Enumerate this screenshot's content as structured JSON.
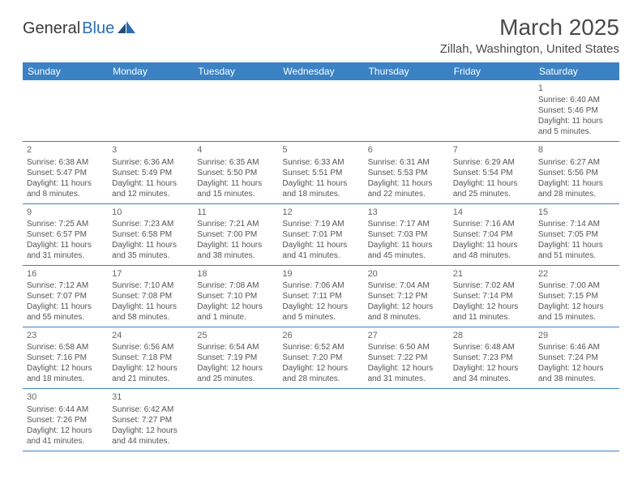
{
  "brand": {
    "part1": "General",
    "part2": "Blue"
  },
  "title": "March 2025",
  "location": "Zillah, Washington, United States",
  "day_headers": [
    "Sunday",
    "Monday",
    "Tuesday",
    "Wednesday",
    "Thursday",
    "Friday",
    "Saturday"
  ],
  "colors": {
    "header_bg": "#3a82c4",
    "header_text": "#ffffff",
    "border": "#3a82c4",
    "text": "#555555",
    "brand_blue": "#2a6fb5"
  },
  "weeks": [
    [
      null,
      null,
      null,
      null,
      null,
      null,
      {
        "d": "1",
        "sunrise": "Sunrise: 6:40 AM",
        "sunset": "Sunset: 5:46 PM",
        "day1": "Daylight: 11 hours",
        "day2": "and 5 minutes."
      }
    ],
    [
      {
        "d": "2",
        "sunrise": "Sunrise: 6:38 AM",
        "sunset": "Sunset: 5:47 PM",
        "day1": "Daylight: 11 hours",
        "day2": "and 8 minutes."
      },
      {
        "d": "3",
        "sunrise": "Sunrise: 6:36 AM",
        "sunset": "Sunset: 5:49 PM",
        "day1": "Daylight: 11 hours",
        "day2": "and 12 minutes."
      },
      {
        "d": "4",
        "sunrise": "Sunrise: 6:35 AM",
        "sunset": "Sunset: 5:50 PM",
        "day1": "Daylight: 11 hours",
        "day2": "and 15 minutes."
      },
      {
        "d": "5",
        "sunrise": "Sunrise: 6:33 AM",
        "sunset": "Sunset: 5:51 PM",
        "day1": "Daylight: 11 hours",
        "day2": "and 18 minutes."
      },
      {
        "d": "6",
        "sunrise": "Sunrise: 6:31 AM",
        "sunset": "Sunset: 5:53 PM",
        "day1": "Daylight: 11 hours",
        "day2": "and 22 minutes."
      },
      {
        "d": "7",
        "sunrise": "Sunrise: 6:29 AM",
        "sunset": "Sunset: 5:54 PM",
        "day1": "Daylight: 11 hours",
        "day2": "and 25 minutes."
      },
      {
        "d": "8",
        "sunrise": "Sunrise: 6:27 AM",
        "sunset": "Sunset: 5:56 PM",
        "day1": "Daylight: 11 hours",
        "day2": "and 28 minutes."
      }
    ],
    [
      {
        "d": "9",
        "sunrise": "Sunrise: 7:25 AM",
        "sunset": "Sunset: 6:57 PM",
        "day1": "Daylight: 11 hours",
        "day2": "and 31 minutes."
      },
      {
        "d": "10",
        "sunrise": "Sunrise: 7:23 AM",
        "sunset": "Sunset: 6:58 PM",
        "day1": "Daylight: 11 hours",
        "day2": "and 35 minutes."
      },
      {
        "d": "11",
        "sunrise": "Sunrise: 7:21 AM",
        "sunset": "Sunset: 7:00 PM",
        "day1": "Daylight: 11 hours",
        "day2": "and 38 minutes."
      },
      {
        "d": "12",
        "sunrise": "Sunrise: 7:19 AM",
        "sunset": "Sunset: 7:01 PM",
        "day1": "Daylight: 11 hours",
        "day2": "and 41 minutes."
      },
      {
        "d": "13",
        "sunrise": "Sunrise: 7:17 AM",
        "sunset": "Sunset: 7:03 PM",
        "day1": "Daylight: 11 hours",
        "day2": "and 45 minutes."
      },
      {
        "d": "14",
        "sunrise": "Sunrise: 7:16 AM",
        "sunset": "Sunset: 7:04 PM",
        "day1": "Daylight: 11 hours",
        "day2": "and 48 minutes."
      },
      {
        "d": "15",
        "sunrise": "Sunrise: 7:14 AM",
        "sunset": "Sunset: 7:05 PM",
        "day1": "Daylight: 11 hours",
        "day2": "and 51 minutes."
      }
    ],
    [
      {
        "d": "16",
        "sunrise": "Sunrise: 7:12 AM",
        "sunset": "Sunset: 7:07 PM",
        "day1": "Daylight: 11 hours",
        "day2": "and 55 minutes."
      },
      {
        "d": "17",
        "sunrise": "Sunrise: 7:10 AM",
        "sunset": "Sunset: 7:08 PM",
        "day1": "Daylight: 11 hours",
        "day2": "and 58 minutes."
      },
      {
        "d": "18",
        "sunrise": "Sunrise: 7:08 AM",
        "sunset": "Sunset: 7:10 PM",
        "day1": "Daylight: 12 hours",
        "day2": "and 1 minute."
      },
      {
        "d": "19",
        "sunrise": "Sunrise: 7:06 AM",
        "sunset": "Sunset: 7:11 PM",
        "day1": "Daylight: 12 hours",
        "day2": "and 5 minutes."
      },
      {
        "d": "20",
        "sunrise": "Sunrise: 7:04 AM",
        "sunset": "Sunset: 7:12 PM",
        "day1": "Daylight: 12 hours",
        "day2": "and 8 minutes."
      },
      {
        "d": "21",
        "sunrise": "Sunrise: 7:02 AM",
        "sunset": "Sunset: 7:14 PM",
        "day1": "Daylight: 12 hours",
        "day2": "and 11 minutes."
      },
      {
        "d": "22",
        "sunrise": "Sunrise: 7:00 AM",
        "sunset": "Sunset: 7:15 PM",
        "day1": "Daylight: 12 hours",
        "day2": "and 15 minutes."
      }
    ],
    [
      {
        "d": "23",
        "sunrise": "Sunrise: 6:58 AM",
        "sunset": "Sunset: 7:16 PM",
        "day1": "Daylight: 12 hours",
        "day2": "and 18 minutes."
      },
      {
        "d": "24",
        "sunrise": "Sunrise: 6:56 AM",
        "sunset": "Sunset: 7:18 PM",
        "day1": "Daylight: 12 hours",
        "day2": "and 21 minutes."
      },
      {
        "d": "25",
        "sunrise": "Sunrise: 6:54 AM",
        "sunset": "Sunset: 7:19 PM",
        "day1": "Daylight: 12 hours",
        "day2": "and 25 minutes."
      },
      {
        "d": "26",
        "sunrise": "Sunrise: 6:52 AM",
        "sunset": "Sunset: 7:20 PM",
        "day1": "Daylight: 12 hours",
        "day2": "and 28 minutes."
      },
      {
        "d": "27",
        "sunrise": "Sunrise: 6:50 AM",
        "sunset": "Sunset: 7:22 PM",
        "day1": "Daylight: 12 hours",
        "day2": "and 31 minutes."
      },
      {
        "d": "28",
        "sunrise": "Sunrise: 6:48 AM",
        "sunset": "Sunset: 7:23 PM",
        "day1": "Daylight: 12 hours",
        "day2": "and 34 minutes."
      },
      {
        "d": "29",
        "sunrise": "Sunrise: 6:46 AM",
        "sunset": "Sunset: 7:24 PM",
        "day1": "Daylight: 12 hours",
        "day2": "and 38 minutes."
      }
    ],
    [
      {
        "d": "30",
        "sunrise": "Sunrise: 6:44 AM",
        "sunset": "Sunset: 7:26 PM",
        "day1": "Daylight: 12 hours",
        "day2": "and 41 minutes."
      },
      {
        "d": "31",
        "sunrise": "Sunrise: 6:42 AM",
        "sunset": "Sunset: 7:27 PM",
        "day1": "Daylight: 12 hours",
        "day2": "and 44 minutes."
      },
      null,
      null,
      null,
      null,
      null
    ]
  ]
}
